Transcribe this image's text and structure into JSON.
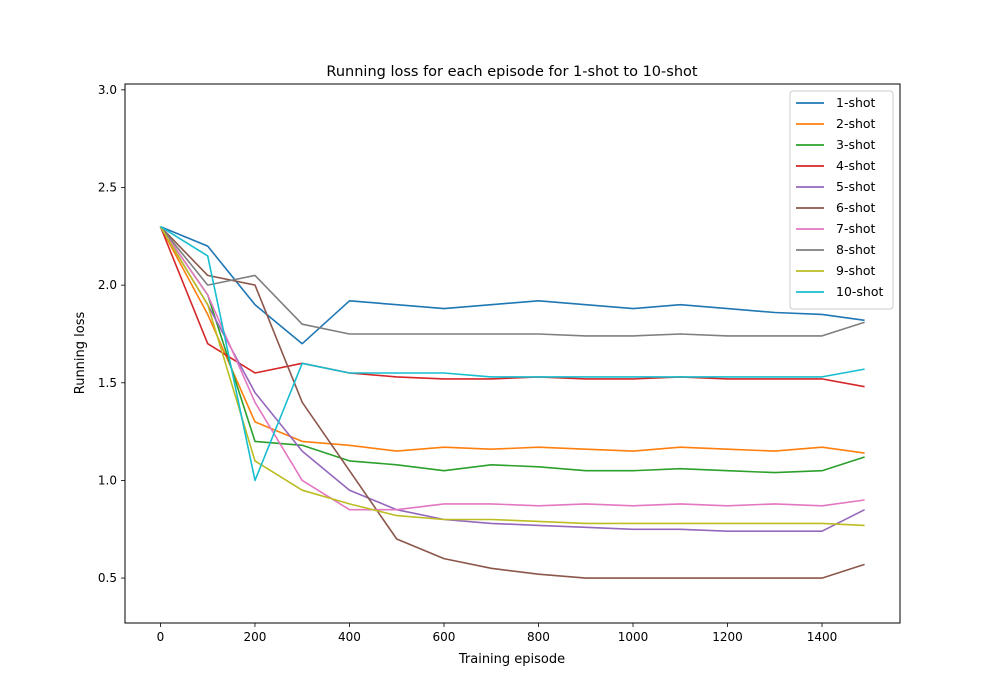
{
  "chart_data": {
    "type": "line",
    "title": "Running loss for each episode for 1-shot to 10-shot",
    "xlabel": "Training episode",
    "ylabel": "Running loss",
    "xlim": [
      -75,
      1565
    ],
    "ylim": [
      0.27,
      3.03
    ],
    "xticks": [
      0,
      200,
      400,
      600,
      800,
      1000,
      1200,
      1400
    ],
    "yticks": [
      0.5,
      1.0,
      1.5,
      2.0,
      2.5,
      3.0
    ],
    "xtick_labels": [
      "0",
      "200",
      "400",
      "600",
      "800",
      "1000",
      "1200",
      "1400"
    ],
    "ytick_labels": [
      "0.5",
      "1.0",
      "1.5",
      "2.0",
      "2.5",
      "3.0"
    ],
    "grid": false,
    "legend_position": "top-right",
    "x": [
      0,
      100,
      200,
      300,
      400,
      500,
      600,
      700,
      800,
      900,
      1000,
      1100,
      1200,
      1300,
      1400,
      1490
    ],
    "series": [
      {
        "name": "1-shot",
        "color": "#1f77b4",
        "values": [
          2.3,
          2.2,
          1.9,
          1.7,
          1.92,
          1.9,
          1.88,
          1.9,
          1.92,
          1.9,
          1.88,
          1.9,
          1.88,
          1.86,
          1.85,
          1.82
        ]
      },
      {
        "name": "2-shot",
        "color": "#ff7f0e",
        "values": [
          2.3,
          1.85,
          1.3,
          1.2,
          1.18,
          1.15,
          1.17,
          1.16,
          1.17,
          1.16,
          1.15,
          1.17,
          1.16,
          1.15,
          1.17,
          1.14
        ]
      },
      {
        "name": "3-shot",
        "color": "#2ca02c",
        "values": [
          2.3,
          1.95,
          1.2,
          1.18,
          1.1,
          1.08,
          1.05,
          1.08,
          1.07,
          1.05,
          1.05,
          1.06,
          1.05,
          1.04,
          1.05,
          1.12
        ]
      },
      {
        "name": "4-shot",
        "color": "#d62728",
        "values": [
          2.3,
          1.7,
          1.55,
          1.6,
          1.55,
          1.53,
          1.52,
          1.52,
          1.53,
          1.52,
          1.52,
          1.53,
          1.52,
          1.52,
          1.52,
          1.48
        ]
      },
      {
        "name": "5-shot",
        "color": "#9467bd",
        "values": [
          2.3,
          1.9,
          1.45,
          1.15,
          0.95,
          0.85,
          0.8,
          0.78,
          0.77,
          0.76,
          0.75,
          0.75,
          0.74,
          0.74,
          0.74,
          0.85
        ]
      },
      {
        "name": "6-shot",
        "color": "#8c564b",
        "values": [
          2.3,
          2.05,
          2.0,
          1.4,
          1.05,
          0.7,
          0.6,
          0.55,
          0.52,
          0.5,
          0.5,
          0.5,
          0.5,
          0.5,
          0.5,
          0.57
        ]
      },
      {
        "name": "7-shot",
        "color": "#e377c2",
        "values": [
          2.3,
          1.95,
          1.4,
          1.0,
          0.85,
          0.85,
          0.88,
          0.88,
          0.87,
          0.88,
          0.87,
          0.88,
          0.87,
          0.88,
          0.87,
          0.9
        ]
      },
      {
        "name": "8-shot",
        "color": "#7f7f7f",
        "values": [
          2.3,
          2.0,
          2.05,
          1.8,
          1.75,
          1.75,
          1.75,
          1.75,
          1.75,
          1.74,
          1.74,
          1.75,
          1.74,
          1.74,
          1.74,
          1.81
        ]
      },
      {
        "name": "9-shot",
        "color": "#bcbd22",
        "values": [
          2.3,
          1.9,
          1.1,
          0.95,
          0.88,
          0.82,
          0.8,
          0.8,
          0.79,
          0.78,
          0.78,
          0.78,
          0.78,
          0.78,
          0.78,
          0.77
        ]
      },
      {
        "name": "10-shot",
        "color": "#17becf",
        "values": [
          2.3,
          2.15,
          1.0,
          1.6,
          1.55,
          1.55,
          1.55,
          1.53,
          1.53,
          1.53,
          1.53,
          1.53,
          1.53,
          1.53,
          1.53,
          1.57
        ]
      }
    ]
  }
}
